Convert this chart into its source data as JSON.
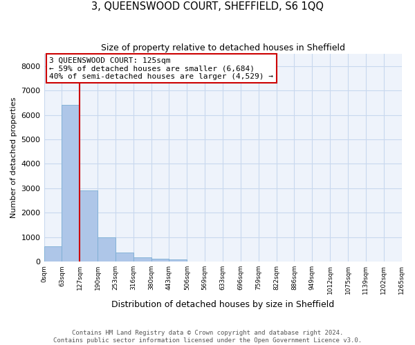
{
  "title": "3, QUEENSWOOD COURT, SHEFFIELD, S6 1QQ",
  "subtitle": "Size of property relative to detached houses in Sheffield",
  "xlabel": "Distribution of detached houses by size in Sheffield",
  "ylabel": "Number of detached properties",
  "property_size": 125,
  "property_label": "3 QUEENSWOOD COURT: 125sqm",
  "annotation_line1": "← 59% of detached houses are smaller (6,684)",
  "annotation_line2": "40% of semi-detached houses are larger (4,529) →",
  "footnote1": "Contains HM Land Registry data © Crown copyright and database right 2024.",
  "footnote2": "Contains public sector information licensed under the Open Government Licence v3.0.",
  "bin_width": 63,
  "bin_starts": [
    0,
    63,
    126,
    189,
    252,
    315,
    378,
    441,
    504,
    567,
    630,
    693,
    756,
    819,
    882,
    945,
    1008,
    1071,
    1134,
    1197
  ],
  "bar_heights": [
    620,
    6420,
    2920,
    1000,
    370,
    180,
    115,
    90,
    0,
    0,
    0,
    0,
    0,
    0,
    0,
    0,
    0,
    0,
    0,
    0
  ],
  "bar_color": "#aec6e8",
  "bar_edge_color": "#7aadd4",
  "line_color": "#cc0000",
  "grid_color": "#c8d8ee",
  "background_color": "#eef3fb",
  "fig_background": "#ffffff",
  "ylim": [
    0,
    8500
  ],
  "yticks": [
    0,
    1000,
    2000,
    3000,
    4000,
    5000,
    6000,
    7000,
    8000
  ],
  "tick_labels": [
    "0sqm",
    "63sqm",
    "127sqm",
    "190sqm",
    "253sqm",
    "316sqm",
    "380sqm",
    "443sqm",
    "506sqm",
    "569sqm",
    "633sqm",
    "696sqm",
    "759sqm",
    "822sqm",
    "886sqm",
    "949sqm",
    "1012sqm",
    "1075sqm",
    "1139sqm",
    "1202sqm",
    "1265sqm"
  ],
  "title_fontsize": 10.5,
  "subtitle_fontsize": 9,
  "ylabel_fontsize": 8,
  "xlabel_fontsize": 9,
  "ytick_fontsize": 8,
  "xtick_fontsize": 6.5,
  "annot_fontsize": 8,
  "footnote_fontsize": 6.5
}
